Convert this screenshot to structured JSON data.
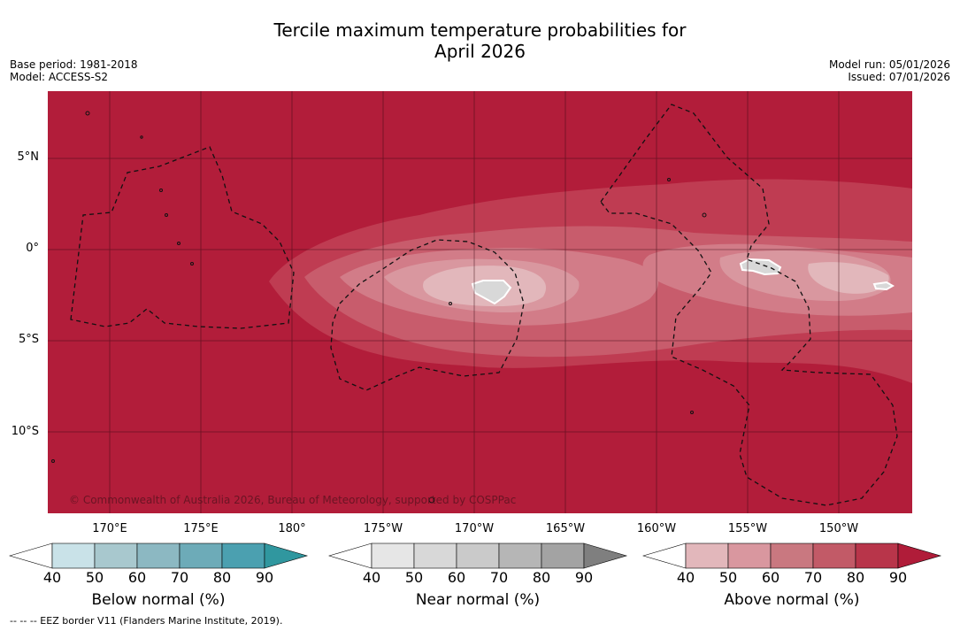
{
  "title_line1": "Tercile maximum temperature probabilities for",
  "title_line2": "April 2026",
  "meta_left": {
    "base_period": "Base period: 1981-2018",
    "model": "Model: ACCESS-S2"
  },
  "meta_right": {
    "model_run": "Model run: 05/01/2026",
    "issued": "Issued: 07/01/2026"
  },
  "map": {
    "lat_labels": [
      "5°N",
      "0°",
      "5°S",
      "10°S"
    ],
    "lon_labels": [
      "170°E",
      "175°E",
      "180°",
      "175°W",
      "170°W",
      "165°W",
      "160°W",
      "155°W",
      "150°W"
    ],
    "copyright": "© Commonwealth of Australia 2026, Bureau of Meteorology, supported by COSPPac",
    "colors": {
      "above_90": "#b21d3a",
      "above_80": "#bf3c52",
      "above_70": "#c85c6c",
      "above_60": "#d27c88",
      "above_50": "#d9979f",
      "above_40": "#e2b7bb",
      "near_50": "#d8d8d8"
    }
  },
  "colorbars": {
    "below": {
      "title": "Below normal (%)",
      "ticks": [
        "40",
        "50",
        "60",
        "70",
        "80",
        "90"
      ],
      "colors": [
        "#ffffff",
        "#c9e2e8",
        "#a8c8ce",
        "#8cb8c2",
        "#6dabb8",
        "#4ba0b0",
        "#30979f"
      ]
    },
    "near": {
      "title": "Near normal (%)",
      "ticks": [
        "40",
        "50",
        "60",
        "70",
        "80",
        "90"
      ],
      "colors": [
        "#ffffff",
        "#e6e6e6",
        "#d8d8d8",
        "#cacaca",
        "#b6b6b6",
        "#a3a3a3",
        "#7f7f7f"
      ]
    },
    "above": {
      "title": "Above normal (%)",
      "ticks": [
        "40",
        "50",
        "60",
        "70",
        "80",
        "90"
      ],
      "colors": [
        "#ffffff",
        "#e2b7bb",
        "#d9979f",
        "#c97880",
        "#c25a67",
        "#b8354a",
        "#b01c39"
      ]
    }
  },
  "footnote": "-- -- -- EEZ border V11 (Flanders Marine Institute, 2019)."
}
